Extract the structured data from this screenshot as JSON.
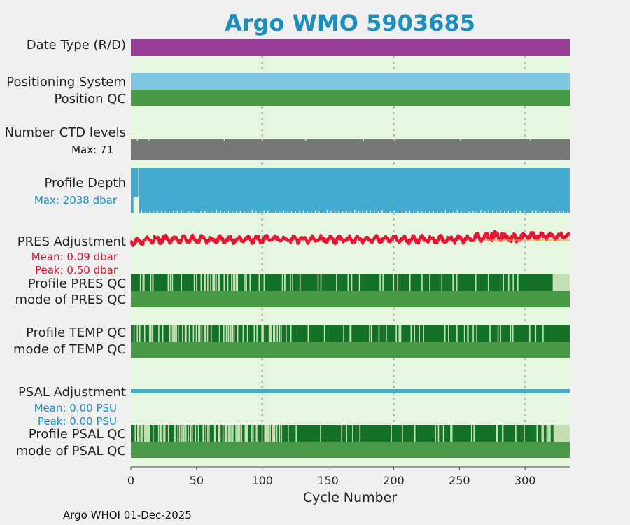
{
  "chart_data": {
    "type": "strip-timeline",
    "title": "Argo WMO 5903685",
    "xlabel": "Cycle Number",
    "xlim": [
      0,
      334
    ],
    "xticks": [
      0,
      50,
      100,
      150,
      200,
      250,
      300
    ],
    "vgrid_at": [
      100,
      200,
      300
    ],
    "footer": "Argo WHOI 01-Dec-2025",
    "colors": {
      "panel_bg": "#e5f8df",
      "date_type": "#993d99",
      "positioning": "#7ec5e0",
      "qc_good": "#4a9a48",
      "qc_dark": "#147228",
      "qc_light": "#c4dfb2",
      "ctd": "#777777",
      "depth": "#43abd0",
      "pres_adj": "#ee1133",
      "psal_adj": "#43abd0",
      "pres_stat": "#e0102f",
      "psal_stat": "#1a8fc0"
    },
    "rows": {
      "date_type": {
        "label": "Date Type (R/D)"
      },
      "positioning": {
        "label": "Positioning System"
      },
      "position_qc": {
        "label": "Position QC"
      },
      "ctd_levels": {
        "label": "Number CTD levels",
        "max_label": "Max: 71",
        "max": 71,
        "typical": 67
      },
      "profile_depth": {
        "label": "Profile Depth",
        "max_label": "Max: 2038 dbar",
        "max_dbar": 2038,
        "typical_dbar": 1950
      },
      "pres_adjustment": {
        "label": "PRES Adjustment",
        "mean_label": "Mean: 0.09 dbar",
        "peak_label": "Peak: 0.50 dbar",
        "mean": 0.09,
        "peak": 0.5
      },
      "profile_pres_qc": {
        "label": "Profile PRES QC"
      },
      "mode_pres_qc": {
        "label": "mode of PRES QC"
      },
      "profile_temp_qc": {
        "label": "Profile TEMP QC"
      },
      "mode_temp_qc": {
        "label": "mode of TEMP QC"
      },
      "psal_adjustment": {
        "label": "PSAL Adjustment",
        "mean_label": "Mean: 0.00 PSU",
        "peak_label": "Peak: 0.00 PSU",
        "mean": 0.0,
        "peak": 0.0
      },
      "profile_psal_qc": {
        "label": "Profile PSAL QC"
      },
      "mode_psal_qc": {
        "label": "mode of PSAL QC"
      }
    }
  }
}
